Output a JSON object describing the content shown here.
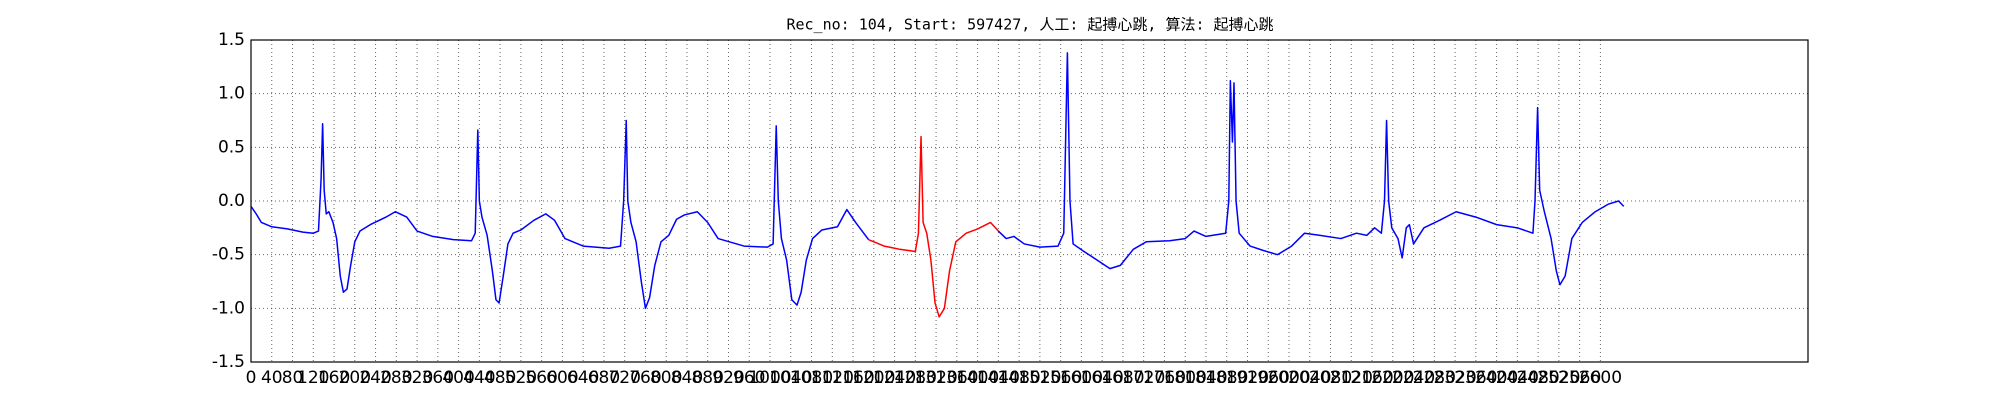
{
  "chart_data": {
    "type": "line",
    "title": "Rec_no: 104, Start: 597427, 人工: 起搏心跳, 算法: 起搏心跳",
    "xlim": [
      0,
      3000
    ],
    "xticks": [
      0,
      40,
      80,
      120,
      160,
      200,
      240,
      280,
      320,
      360,
      400,
      440,
      480,
      520,
      560,
      600,
      640,
      680,
      720,
      760,
      800,
      840,
      880,
      920,
      960,
      1000,
      1040,
      1080,
      1120,
      1160,
      1200,
      1240,
      1280,
      1320,
      1360,
      1400,
      1440,
      1480,
      1520,
      1560,
      1600,
      1640,
      1680,
      1720,
      1760,
      1800,
      1840,
      1880,
      1920,
      1960,
      2000,
      2040,
      2080,
      2120,
      2160,
      2200,
      2240,
      2280,
      2320,
      2360,
      2400,
      2440,
      2480,
      2520,
      2560,
      2600
    ],
    "ylim": [
      -1.5,
      1.5
    ],
    "yticks": [
      -1.5,
      {
        "value": -1.0,
        "label": "-1.0"
      },
      -0.5,
      {
        "value": 0.0,
        "label": "0.0"
      },
      0.5,
      {
        "value": 1.0,
        "label": "1.0"
      },
      1.5
    ],
    "grid": true,
    "series": [
      {
        "color": "#0000ff",
        "x": [
          0,
          10,
          20,
          40,
          70,
          100,
          120,
          130,
          135,
          138,
          141,
          145,
          150,
          158,
          165,
          172,
          178,
          185,
          192,
          200,
          210,
          230,
          260,
          278,
          300,
          320,
          350,
          390,
          425,
          432,
          437,
          440,
          445,
          455,
          465,
          472,
          478,
          486,
          495,
          505,
          520,
          545,
          568,
          585,
          605,
          640,
          690,
          712,
          718,
          723,
          726,
          732,
          742,
          752,
          760,
          768,
          778,
          790,
          805,
          820,
          835,
          860,
          880,
          900,
          950,
          995,
          1006,
          1012,
          1016,
          1022,
          1032,
          1042,
          1052,
          1060,
          1070,
          1082,
          1100,
          1130,
          1148,
          1165,
          1190,
          1300,
          1440,
          1455,
          1470,
          1490,
          1520,
          1555,
          1566,
          1573,
          1578,
          1584,
          1605,
          1630,
          1655,
          1675,
          1700,
          1725,
          1770,
          1800,
          1817,
          1840,
          1878,
          1884,
          1887,
          1891,
          1894,
          1898,
          1904,
          1925,
          1950,
          1978,
          2005,
          2030,
          2060,
          2100,
          2130,
          2150,
          2165,
          2178,
          2184,
          2188,
          2192,
          2198,
          2210,
          2218,
          2226,
          2232,
          2240,
          2260,
          2290,
          2322,
          2360,
          2400,
          2440,
          2470,
          2474,
          2479,
          2483,
          2492,
          2505,
          2515,
          2522,
          2532,
          2545,
          2565,
          2590,
          2615,
          2635,
          2645
        ],
        "values": [
          -0.05,
          -0.12,
          -0.2,
          -0.24,
          -0.26,
          -0.29,
          -0.3,
          -0.28,
          0.2,
          0.72,
          0.1,
          -0.12,
          -0.1,
          -0.2,
          -0.35,
          -0.7,
          -0.85,
          -0.82,
          -0.6,
          -0.38,
          -0.28,
          -0.22,
          -0.15,
          -0.1,
          -0.15,
          -0.28,
          -0.33,
          -0.36,
          -0.37,
          -0.3,
          0.66,
          0,
          -0.15,
          -0.32,
          -0.65,
          -0.92,
          -0.95,
          -0.7,
          -0.4,
          -0.3,
          -0.27,
          -0.18,
          -0.12,
          -0.18,
          -0.35,
          -0.42,
          -0.44,
          -0.42,
          0,
          0.75,
          0,
          -0.2,
          -0.38,
          -0.75,
          -1,
          -0.9,
          -0.6,
          -0.38,
          -0.32,
          -0.17,
          -0.13,
          -0.1,
          -0.2,
          -0.35,
          -0.42,
          -0.43,
          -0.4,
          0.7,
          0,
          -0.35,
          -0.55,
          -0.92,
          -0.97,
          -0.85,
          -0.55,
          -0.35,
          -0.27,
          -0.24,
          -0.08,
          -0.2,
          -0.36,
          null,
          -0.28,
          -0.35,
          -0.33,
          -0.4,
          -0.43,
          -0.42,
          -0.3,
          1.38,
          0,
          -0.4,
          -0.47,
          -0.55,
          -0.63,
          -0.6,
          -0.45,
          -0.38,
          -0.37,
          -0.35,
          -0.28,
          -0.33,
          -0.3,
          0,
          1.12,
          0.55,
          1.1,
          0,
          -0.3,
          -0.42,
          -0.46,
          -0.5,
          -0.42,
          -0.3,
          -0.32,
          -0.35,
          -0.3,
          -0.32,
          -0.25,
          -0.3,
          0,
          0.75,
          0,
          -0.25,
          -0.35,
          -0.53,
          -0.25,
          -0.22,
          -0.4,
          -0.25,
          -0.18,
          -0.1,
          -0.15,
          -0.22,
          -0.25,
          -0.3,
          0,
          0.87,
          0.1,
          -0.1,
          -0.35,
          -0.65,
          -0.78,
          -0.7,
          -0.35,
          -0.2,
          -0.1,
          -0.03,
          0,
          -0.05
        ]
      },
      {
        "color": "#ff0000",
        "x": [
          1190,
          1220,
          1250,
          1280,
          1286,
          1291,
          1295,
          1302,
          1310,
          1318,
          1326,
          1336,
          1346,
          1358,
          1378,
          1400,
          1425,
          1440
        ],
        "values": [
          -0.36,
          -0.42,
          -0.45,
          -0.47,
          -0.3,
          0.6,
          -0.2,
          -0.3,
          -0.55,
          -0.95,
          -1.08,
          -1,
          -0.65,
          -0.38,
          -0.3,
          -0.26,
          -0.2,
          -0.28
        ]
      }
    ]
  }
}
